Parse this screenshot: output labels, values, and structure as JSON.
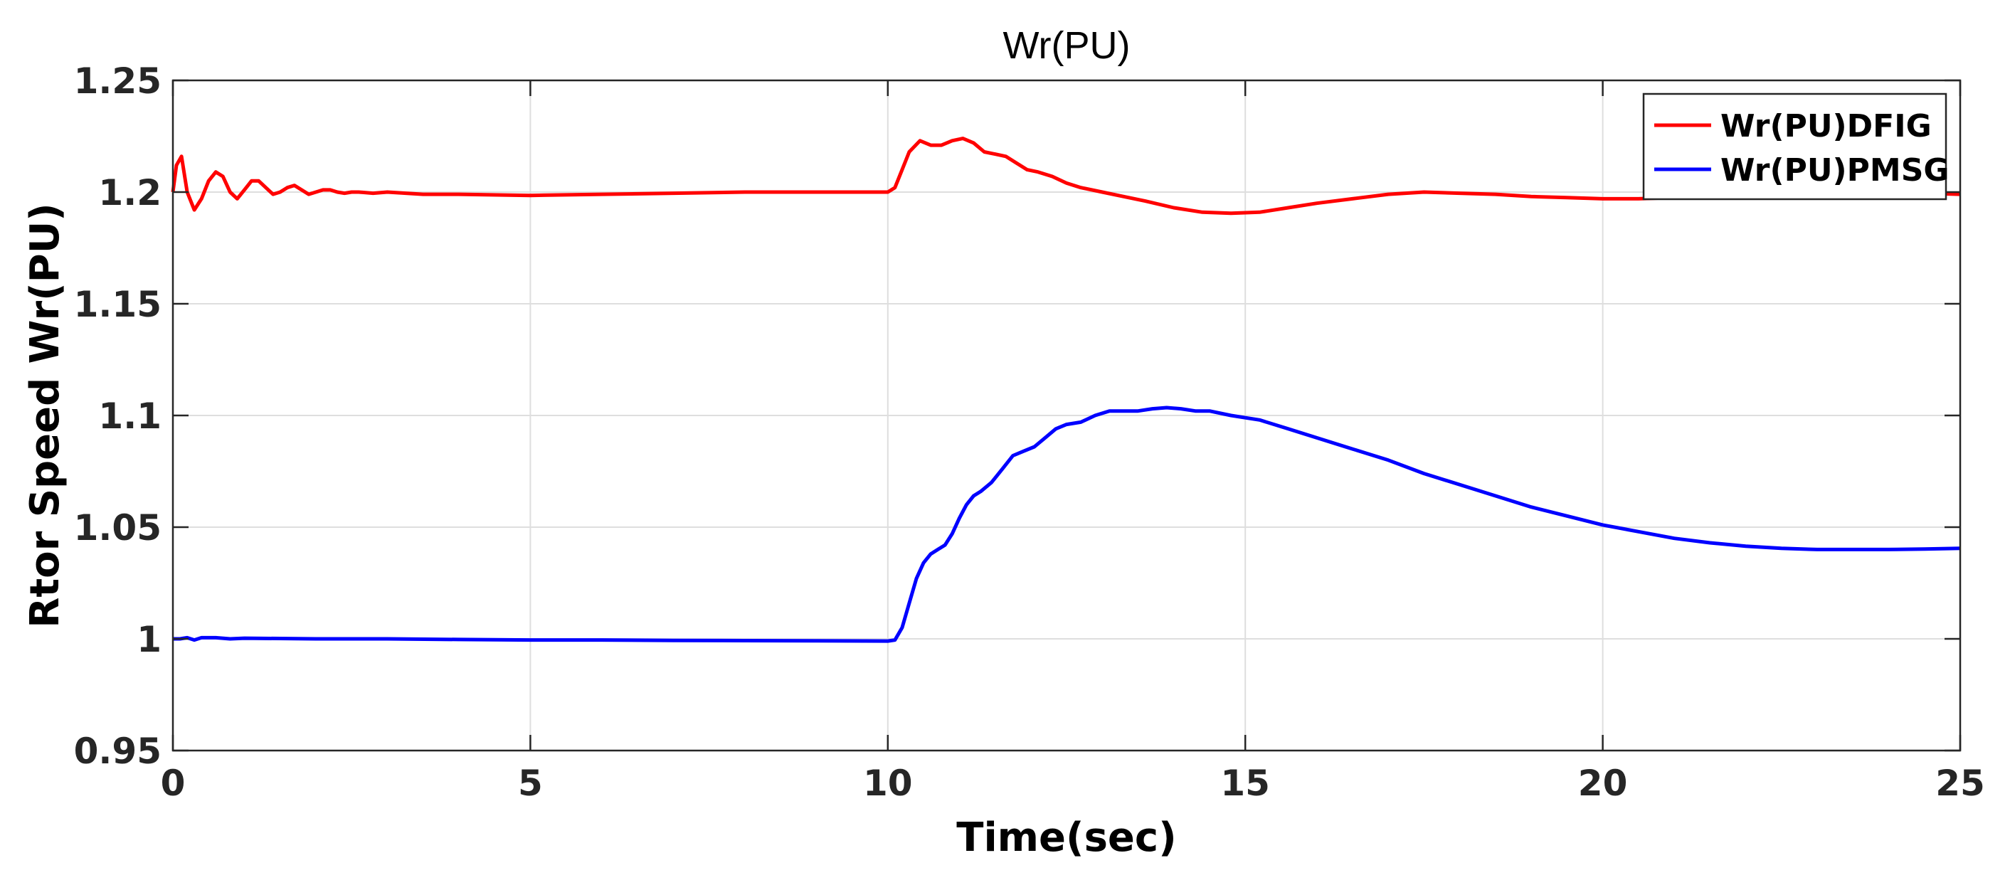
{
  "chart_data": {
    "type": "line",
    "title": "Wr(PU)",
    "xlabel": "Time(sec)",
    "ylabel": "Rtor Speed Wr(PU)",
    "xlim": [
      0,
      25
    ],
    "ylim": [
      0.95,
      1.25
    ],
    "xticks": [
      0,
      5,
      10,
      15,
      20,
      25
    ],
    "xtick_labels": [
      "0",
      "5",
      "10",
      "15",
      "20",
      "25"
    ],
    "yticks": [
      0.95,
      1,
      1.05,
      1.1,
      1.15,
      1.2,
      1.25
    ],
    "ytick_labels": [
      "0.95",
      "1",
      "1.05",
      "1.1",
      "1.15",
      "1.2",
      "1.25"
    ],
    "grid": true,
    "legend_position": "top-right",
    "series": [
      {
        "name": "Wr(PU)DFIG",
        "color": "#ff0000",
        "x": [
          0,
          0.05,
          0.12,
          0.2,
          0.3,
          0.4,
          0.5,
          0.6,
          0.7,
          0.8,
          0.9,
          1.0,
          1.1,
          1.2,
          1.3,
          1.4,
          1.5,
          1.6,
          1.7,
          1.8,
          1.9,
          2.0,
          2.1,
          2.2,
          2.3,
          2.4,
          2.5,
          2.6,
          2.8,
          3.0,
          3.5,
          4.0,
          5.0,
          6.0,
          7.0,
          8.0,
          9.0,
          10.0,
          10.1,
          10.2,
          10.3,
          10.45,
          10.6,
          10.75,
          10.9,
          11.05,
          11.2,
          11.35,
          11.5,
          11.65,
          11.8,
          11.95,
          12.1,
          12.3,
          12.5,
          12.7,
          13.0,
          13.3,
          13.6,
          14.0,
          14.4,
          14.8,
          15.2,
          15.6,
          16.0,
          16.5,
          17.0,
          17.5,
          18.0,
          18.5,
          19.0,
          19.5,
          20.0,
          20.5,
          21.0,
          21.5,
          22.0,
          22.5,
          23.0,
          23.5,
          24.0,
          24.5,
          25.0
        ],
        "y": [
          1.2,
          1.212,
          1.216,
          1.2,
          1.192,
          1.197,
          1.205,
          1.209,
          1.207,
          1.2,
          1.197,
          1.201,
          1.205,
          1.205,
          1.202,
          1.199,
          1.2,
          1.202,
          1.203,
          1.201,
          1.199,
          1.2,
          1.201,
          1.201,
          1.2,
          1.1995,
          1.2,
          1.2,
          1.1995,
          1.2,
          1.199,
          1.199,
          1.1985,
          1.199,
          1.1995,
          1.2,
          1.2,
          1.2,
          1.202,
          1.21,
          1.218,
          1.223,
          1.221,
          1.221,
          1.223,
          1.224,
          1.222,
          1.218,
          1.217,
          1.216,
          1.213,
          1.21,
          1.209,
          1.207,
          1.204,
          1.202,
          1.2,
          1.198,
          1.196,
          1.193,
          1.191,
          1.1905,
          1.191,
          1.193,
          1.195,
          1.197,
          1.199,
          1.2,
          1.1995,
          1.199,
          1.198,
          1.1975,
          1.197,
          1.197,
          1.1975,
          1.199,
          1.2,
          1.2,
          1.2,
          1.2,
          1.1995,
          1.1995,
          1.199
        ]
      },
      {
        "name": "Wr(PU)PMSG",
        "color": "#0000ff",
        "x": [
          0,
          0.1,
          0.2,
          0.3,
          0.4,
          0.6,
          0.8,
          1.0,
          2.0,
          3.0,
          4.0,
          5.0,
          6.0,
          7.0,
          8.0,
          9.0,
          10.0,
          10.1,
          10.2,
          10.3,
          10.4,
          10.5,
          10.6,
          10.7,
          10.8,
          10.9,
          11.0,
          11.1,
          11.2,
          11.3,
          11.45,
          11.6,
          11.75,
          11.9,
          12.05,
          12.2,
          12.35,
          12.5,
          12.7,
          12.9,
          13.1,
          13.3,
          13.5,
          13.7,
          13.9,
          14.1,
          14.3,
          14.5,
          14.8,
          15.2,
          15.6,
          16.0,
          16.5,
          17.0,
          17.5,
          18.0,
          18.5,
          19.0,
          19.5,
          20.0,
          20.5,
          21.0,
          21.5,
          22.0,
          22.5,
          23.0,
          23.5,
          24.0,
          24.5,
          25.0
        ],
        "y": [
          1.0,
          1.0,
          1.0005,
          0.9995,
          1.0005,
          1.0005,
          1.0,
          1.0003,
          1.0,
          1.0,
          0.9997,
          0.9995,
          0.9995,
          0.9993,
          0.9992,
          0.9991,
          0.999,
          0.9995,
          1.005,
          1.016,
          1.027,
          1.034,
          1.038,
          1.04,
          1.042,
          1.047,
          1.054,
          1.06,
          1.064,
          1.066,
          1.07,
          1.076,
          1.082,
          1.084,
          1.086,
          1.09,
          1.094,
          1.096,
          1.097,
          1.1,
          1.102,
          1.102,
          1.102,
          1.103,
          1.1035,
          1.103,
          1.102,
          1.102,
          1.1,
          1.098,
          1.094,
          1.09,
          1.085,
          1.08,
          1.074,
          1.069,
          1.064,
          1.059,
          1.055,
          1.051,
          1.048,
          1.045,
          1.043,
          1.0415,
          1.0405,
          1.04,
          1.04,
          1.04,
          1.0402,
          1.0405
        ]
      }
    ]
  }
}
